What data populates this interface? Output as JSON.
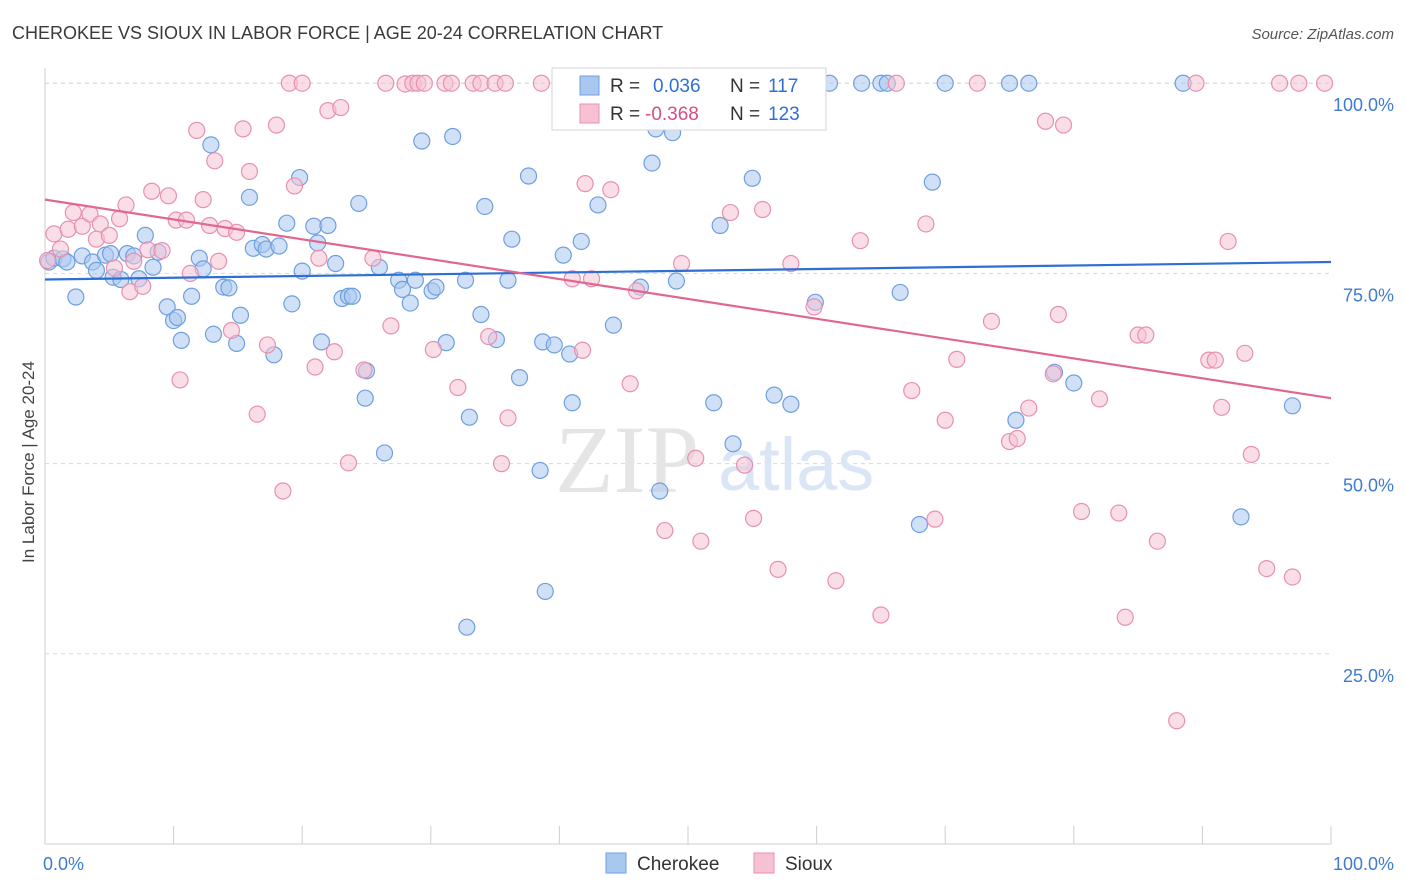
{
  "title": "CHEROKEE VS SIOUX IN LABOR FORCE | AGE 20-24 CORRELATION CHART",
  "source": "Source: ZipAtlas.com",
  "watermark": {
    "zip": "ZIP",
    "atlas": "atlas"
  },
  "colors": {
    "cherokee_fill": "#a9c8f0",
    "cherokee_stroke": "#6f9fe0",
    "cherokee_line": "#2e6fd3",
    "sioux_fill": "#f6c2d3",
    "sioux_stroke": "#e890b0",
    "sioux_line": "#e0678f",
    "grid": "#d8d8d8",
    "axis_text": "#3e7bd1"
  },
  "legend": {
    "r_label": "R =",
    "n_label": "N =",
    "cherokee": {
      "r": "0.036",
      "n": "117"
    },
    "sioux": {
      "r": "-0.368",
      "n": "123"
    }
  },
  "bottom_legend": [
    "Cherokee",
    "Sioux"
  ],
  "chart_data": {
    "type": "scatter",
    "title": "CHEROKEE VS SIOUX IN LABOR FORCE | AGE 20-24 CORRELATION CHART",
    "xlabel": "",
    "ylabel": "In Labor Force | Age 20-24",
    "xlim": [
      0,
      100
    ],
    "ylim": [
      0,
      102
    ],
    "x_tick_labels": [
      "0.0%",
      "100.0%"
    ],
    "y_tick_labels": [
      "25.0%",
      "50.0%",
      "75.0%",
      "100.0%"
    ],
    "y_ticks": [
      25,
      50,
      75,
      100
    ],
    "grid": true,
    "legend_position": "top-center",
    "series": [
      {
        "name": "Cherokee",
        "r": 0.036,
        "n": 117,
        "trend": {
          "x": [
            0,
            100
          ],
          "y": [
            74.2,
            76.5
          ]
        },
        "points": [
          [
            0.3,
            76.5
          ],
          [
            0.7,
            77
          ],
          [
            1.4,
            76.9
          ],
          [
            1.7,
            76.5
          ],
          [
            2.4,
            71.9
          ],
          [
            2.9,
            77.3
          ],
          [
            3.7,
            76.5
          ],
          [
            4.0,
            75.4
          ],
          [
            4.7,
            77.4
          ],
          [
            5.1,
            77.6
          ],
          [
            5.3,
            74.5
          ],
          [
            5.9,
            74.2
          ],
          [
            6.4,
            77.6
          ],
          [
            6.9,
            77.3
          ],
          [
            7.3,
            74.3
          ],
          [
            7.8,
            80
          ],
          [
            8.4,
            75.8
          ],
          [
            8.8,
            77.8
          ],
          [
            9.5,
            70.6
          ],
          [
            10.0,
            68.8
          ],
          [
            10.3,
            69.2
          ],
          [
            10.6,
            66.2
          ],
          [
            11.4,
            72
          ],
          [
            12.0,
            77
          ],
          [
            12.3,
            75.6
          ],
          [
            12.9,
            91.9
          ],
          [
            13.1,
            67
          ],
          [
            13.9,
            73.2
          ],
          [
            14.3,
            73.1
          ],
          [
            14.9,
            65.8
          ],
          [
            15.2,
            69.5
          ],
          [
            15.9,
            85
          ],
          [
            16.2,
            78.3
          ],
          [
            16.9,
            78.8
          ],
          [
            17.2,
            78.2
          ],
          [
            17.8,
            64.3
          ],
          [
            18.2,
            78.6
          ],
          [
            18.8,
            81.6
          ],
          [
            19.2,
            71
          ],
          [
            19.8,
            87.6
          ],
          [
            20.0,
            75.3
          ],
          [
            20.9,
            81.2
          ],
          [
            21.2,
            79
          ],
          [
            21.5,
            66
          ],
          [
            22.0,
            81.3
          ],
          [
            22.6,
            76.3
          ],
          [
            23.1,
            71.7
          ],
          [
            23.6,
            72
          ],
          [
            23.9,
            72
          ],
          [
            24.4,
            84.2
          ],
          [
            25.0,
            62.2
          ],
          [
            24.9,
            58.6
          ],
          [
            26.0,
            75.8
          ],
          [
            26.4,
            51.4
          ],
          [
            27.5,
            74.1
          ],
          [
            27.8,
            72.9
          ],
          [
            28.4,
            71.1
          ],
          [
            28.8,
            74.1
          ],
          [
            29.3,
            92.4
          ],
          [
            30.1,
            72.7
          ],
          [
            30.4,
            73.2
          ],
          [
            31.2,
            65.9
          ],
          [
            31.7,
            93
          ],
          [
            32.7,
            74.1
          ],
          [
            32.8,
            28.5
          ],
          [
            33.0,
            56.1
          ],
          [
            33.9,
            69.6
          ],
          [
            34.2,
            83.8
          ],
          [
            35.1,
            66.3
          ],
          [
            36.0,
            74.1
          ],
          [
            36.3,
            79.5
          ],
          [
            36.9,
            61.3
          ],
          [
            37.6,
            87.8
          ],
          [
            38.5,
            49.1
          ],
          [
            38.7,
            66
          ],
          [
            38.9,
            33.2
          ],
          [
            39.6,
            65.6
          ],
          [
            40.3,
            77.4
          ],
          [
            40.8,
            64.4
          ],
          [
            41.0,
            58
          ],
          [
            41.7,
            79.2
          ],
          [
            43.0,
            84
          ],
          [
            44.2,
            68.2
          ],
          [
            45.2,
            100
          ],
          [
            46.0,
            100
          ],
          [
            46.3,
            73.2
          ],
          [
            47.2,
            89.5
          ],
          [
            47.5,
            94
          ],
          [
            47.8,
            46.4
          ],
          [
            48.8,
            93.5
          ],
          [
            49.1,
            74
          ],
          [
            50.4,
            100
          ],
          [
            52.0,
            58
          ],
          [
            52.5,
            81.3
          ],
          [
            53.5,
            52.6
          ],
          [
            54.5,
            100
          ],
          [
            55.0,
            87.5
          ],
          [
            56.0,
            100
          ],
          [
            56.7,
            59
          ],
          [
            58.0,
            57.8
          ],
          [
            59.0,
            100
          ],
          [
            59.5,
            100
          ],
          [
            59.9,
            71.2
          ],
          [
            61.0,
            100
          ],
          [
            63.5,
            100
          ],
          [
            65.0,
            100
          ],
          [
            65.5,
            100
          ],
          [
            66.5,
            72.5
          ],
          [
            68.0,
            42
          ],
          [
            69.0,
            87
          ],
          [
            70.0,
            100
          ],
          [
            75.0,
            100
          ],
          [
            75.5,
            55.7
          ],
          [
            76.5,
            100
          ],
          [
            78.5,
            62
          ],
          [
            80.0,
            60.6
          ],
          [
            88.5,
            100
          ],
          [
            93.0,
            43
          ],
          [
            97.0,
            57.6
          ]
        ]
      },
      {
        "name": "Sioux",
        "r": -0.368,
        "n": 123,
        "trend": {
          "x": [
            0,
            100
          ],
          "y": [
            84.7,
            58.6
          ]
        },
        "points": [
          [
            0.2,
            76.7
          ],
          [
            0.7,
            80.2
          ],
          [
            1.2,
            78.2
          ],
          [
            1.8,
            80.8
          ],
          [
            2.2,
            83
          ],
          [
            2.9,
            81.2
          ],
          [
            3.5,
            82.8
          ],
          [
            4.0,
            79.5
          ],
          [
            4.3,
            81.5
          ],
          [
            5.0,
            80
          ],
          [
            5.4,
            75.7
          ],
          [
            5.8,
            82.2
          ],
          [
            6.3,
            84
          ],
          [
            6.6,
            72.6
          ],
          [
            6.9,
            76.6
          ],
          [
            7.6,
            73.3
          ],
          [
            8.0,
            78.1
          ],
          [
            8.3,
            85.8
          ],
          [
            9.1,
            78
          ],
          [
            9.6,
            85.2
          ],
          [
            10.2,
            82
          ],
          [
            10.5,
            61
          ],
          [
            11.0,
            82
          ],
          [
            11.3,
            75
          ],
          [
            11.8,
            93.8
          ],
          [
            12.3,
            84.7
          ],
          [
            12.8,
            81.3
          ],
          [
            13.2,
            89.8
          ],
          [
            13.5,
            76.6
          ],
          [
            14.0,
            80.9
          ],
          [
            14.5,
            67.5
          ],
          [
            14.9,
            80.4
          ],
          [
            15.4,
            94
          ],
          [
            15.9,
            88.4
          ],
          [
            16.5,
            56.5
          ],
          [
            17.3,
            65.6
          ],
          [
            18.0,
            94.5
          ],
          [
            18.5,
            46.4
          ],
          [
            19.0,
            100
          ],
          [
            19.4,
            86.5
          ],
          [
            20.0,
            100
          ],
          [
            21.0,
            62.7
          ],
          [
            21.3,
            77
          ],
          [
            22.0,
            96.4
          ],
          [
            22.5,
            64.7
          ],
          [
            23.0,
            96.8
          ],
          [
            23.6,
            50.1
          ],
          [
            24.8,
            62.3
          ],
          [
            25.5,
            77
          ],
          [
            26.5,
            100
          ],
          [
            26.9,
            68.1
          ],
          [
            28.0,
            99.9
          ],
          [
            28.6,
            100
          ],
          [
            29.0,
            100
          ],
          [
            29.5,
            100
          ],
          [
            30.2,
            65
          ],
          [
            31.1,
            100
          ],
          [
            31.6,
            100
          ],
          [
            32.1,
            60
          ],
          [
            33.3,
            100
          ],
          [
            33.9,
            100
          ],
          [
            34.5,
            66.7
          ],
          [
            35.0,
            100
          ],
          [
            35.5,
            50
          ],
          [
            35.8,
            100
          ],
          [
            36.0,
            56
          ],
          [
            38.6,
            100
          ],
          [
            40.1,
            100
          ],
          [
            41.0,
            74.3
          ],
          [
            41.8,
            64.9
          ],
          [
            42.0,
            86.8
          ],
          [
            42.5,
            74.3
          ],
          [
            43.4,
            100
          ],
          [
            44.0,
            86
          ],
          [
            45.0,
            100
          ],
          [
            45.5,
            60.5
          ],
          [
            46.0,
            72.7
          ],
          [
            47.1,
            100
          ],
          [
            48.2,
            41.2
          ],
          [
            49.5,
            76.3
          ],
          [
            50.6,
            50.7
          ],
          [
            51.0,
            39.8
          ],
          [
            52.4,
            100
          ],
          [
            53.3,
            83
          ],
          [
            54.4,
            49.8
          ],
          [
            55.1,
            42.8
          ],
          [
            55.8,
            83.4
          ],
          [
            57.0,
            36.1
          ],
          [
            58.0,
            76.3
          ],
          [
            59.8,
            70.6
          ],
          [
            61.5,
            34.6
          ],
          [
            63.4,
            79.3
          ],
          [
            65.0,
            30.1
          ],
          [
            66.2,
            100
          ],
          [
            67.4,
            59.6
          ],
          [
            68.5,
            81.5
          ],
          [
            69.2,
            42.7
          ],
          [
            70.0,
            55.7
          ],
          [
            70.9,
            63.7
          ],
          [
            72.5,
            100
          ],
          [
            73.6,
            68.7
          ],
          [
            75.0,
            52.9
          ],
          [
            75.6,
            53.3
          ],
          [
            76.5,
            57.3
          ],
          [
            77.8,
            95
          ],
          [
            78.4,
            61.8
          ],
          [
            78.8,
            69.6
          ],
          [
            79.2,
            94.5
          ],
          [
            80.6,
            43.7
          ],
          [
            82.0,
            58.5
          ],
          [
            83.5,
            43.5
          ],
          [
            84.0,
            29.8
          ],
          [
            85.0,
            66.9
          ],
          [
            85.6,
            66.9
          ],
          [
            86.5,
            39.8
          ],
          [
            88.0,
            16.2
          ],
          [
            89.5,
            100
          ],
          [
            90.5,
            63.6
          ],
          [
            91.0,
            63.6
          ],
          [
            91.5,
            57.4
          ],
          [
            92.0,
            79.2
          ],
          [
            93.3,
            64.5
          ],
          [
            93.8,
            51.2
          ],
          [
            95.0,
            36.2
          ],
          [
            96.0,
            100
          ],
          [
            97.0,
            35.1
          ],
          [
            97.5,
            100
          ],
          [
            99.5,
            100
          ]
        ]
      }
    ]
  }
}
